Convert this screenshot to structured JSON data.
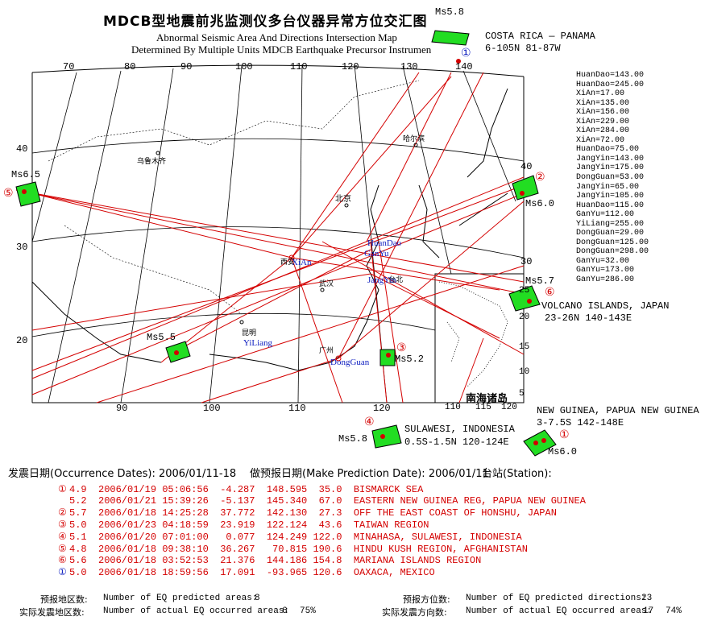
{
  "header": {
    "title_cn": "MDCB型地震前兆监测仪多台仪器异常方位交汇图",
    "subtitle_line1": "Abnormal Seismic Area And Directions Intersection Map",
    "subtitle_line2": "Determined By Multiple Units MDCB Earthquake Precursor Instrumen"
  },
  "map": {
    "top_lon_ticks": [
      "70",
      "80",
      "90",
      "100",
      "110",
      "120",
      "130",
      "140"
    ],
    "bottom_lon_ticks": [
      "90",
      "100",
      "110",
      "120"
    ],
    "left_lat_ticks": [
      "40",
      "30",
      "20"
    ],
    "right_lat_ticks": [
      "40",
      "30"
    ],
    "inset_lat_ticks": [
      "25",
      "20",
      "15",
      "10",
      "5"
    ],
    "inset_lon_ticks": [
      "110",
      "115",
      "120"
    ],
    "inset_label": "南海诸岛",
    "city_labels": {
      "urumqi": "乌鲁木齐",
      "harbin": "哈尔滨",
      "beijing": "北京",
      "xian_city": "西安",
      "wuhan": "武汉",
      "kunming": "昆明",
      "guangzhou": "广州",
      "taipei": "台北"
    },
    "station_labels": {
      "huandao": "HuanDao",
      "ganyu": "GanYu",
      "xian": "XiAn",
      "jangyin": "JangYin",
      "yiliang": "YiLiang",
      "dongguan": "DongGuan"
    }
  },
  "areas": [
    {
      "id": "costa-rica",
      "marker": "①",
      "marker_color": "#1020c0",
      "mag": "Ms5.8",
      "name": "COSTA RICA — PANAMA",
      "range": "6-105N 81-87W"
    },
    {
      "id": "japan",
      "marker": "②",
      "marker_color": "#d40000",
      "mag": "Ms6.0",
      "name": "",
      "range": ""
    },
    {
      "id": "west",
      "marker": "⑤",
      "marker_color": "#d40000",
      "mag": "Ms6.5",
      "name": "",
      "range": ""
    },
    {
      "id": "volcano",
      "marker": "⑥",
      "marker_color": "#d40000",
      "mag": "Ms5.7",
      "name": "VOLCANO ISLANDS, JAPAN",
      "range": "23-26N 140-143E"
    },
    {
      "id": "myanmar",
      "marker": "",
      "marker_color": "#d40000",
      "mag": "Ms5.5",
      "name": "",
      "range": ""
    },
    {
      "id": "taiwan",
      "marker": "③",
      "marker_color": "#d40000",
      "mag": "Ms5.2",
      "name": "",
      "range": ""
    },
    {
      "id": "sulawesi",
      "marker": "④",
      "marker_color": "#d40000",
      "mag": "Ms5.8",
      "name": "SULAWESI, INDONESIA",
      "range": "0.5S-1.5N  120-124E"
    },
    {
      "id": "png",
      "marker": "①",
      "marker_color": "#d40000",
      "mag": "Ms6.0",
      "name": "NEW GUINEA, PAPUA NEW GUINEA",
      "range": "3-7.5S 142-148E"
    }
  ],
  "azimuths": [
    "HuanDao=143.00",
    "HuanDao=245.00",
    "XiAn=17.00",
    "XiAn=135.00",
    "XiAn=156.00",
    "XiAn=229.00",
    "XiAn=284.00",
    "XiAn=72.00",
    "HuanDao=75.00",
    "JangYin=143.00",
    "JangYin=175.00",
    "DongGuan=53.00",
    "JangYin=65.00",
    "JangYin=105.00",
    "HuanDao=115.00",
    "GanYu=112.00",
    "YiLiang=255.00",
    "DongGuan=29.00",
    "DongGuan=125.00",
    "DongGuan=298.00",
    "GanYu=32.00",
    "GanYu=173.00",
    "GanYu=286.00"
  ],
  "info": {
    "occurrence_label": "发震日期(Occurrence Dates): 2006/01/11-18",
    "prediction_label": "做预报日期(Make Prediction Date): 2006/01/11",
    "station_label": "台站(Station):"
  },
  "events": [
    {
      "marker": "①",
      "marker_color": "#d40000",
      "text": "4.9  2006/01/19 05:06:56  -4.287  148.595  35.0  BISMARCK SEA"
    },
    {
      "marker": "",
      "marker_color": "#d40000",
      "text": "5.2  2006/01/21 15:39:26  -5.137  145.340  67.0  EASTERN NEW GUINEA REG, PAPUA NEW GUINEA"
    },
    {
      "marker": "②",
      "marker_color": "#d40000",
      "text": "5.7  2006/01/18 14:25:28  37.772  142.130  27.3  OFF THE EAST COAST OF HONSHU, JAPAN"
    },
    {
      "marker": "③",
      "marker_color": "#d40000",
      "text": "5.0  2006/01/23 04:18:59  23.919  122.124  43.6  TAIWAN REGION"
    },
    {
      "marker": "④",
      "marker_color": "#d40000",
      "text": "5.1  2006/01/20 07:01:00   0.077  124.249 122.0  MINAHASA, SULAWESI, INDONESIA"
    },
    {
      "marker": "⑤",
      "marker_color": "#d40000",
      "text": "4.8  2006/01/18 09:38:10  36.267   70.815 190.6  HINDU KUSH REGION, AFGHANISTAN"
    },
    {
      "marker": "⑥",
      "marker_color": "#d40000",
      "text": "5.6  2006/01/18 03:52:53  21.376  144.186 154.8  MARIANA ISLANDS REGION"
    },
    {
      "marker": "①",
      "marker_color": "#1020c0",
      "text": "5.0  2006/01/18 18:59:56  17.091  -93.965 120.6  OAXACA, MEXICO"
    }
  ],
  "footer": {
    "predicted_areas_cn": "预报地区数:",
    "predicted_areas_en": "Number of EQ predicted areas:",
    "predicted_areas_val": "8",
    "actual_areas_cn": "实际发震地区数:",
    "actual_areas_en": "Number of actual EQ occurred areas:",
    "actual_areas_val": "6",
    "actual_areas_pct": "75%",
    "predicted_dirs_cn": "预报方位数:",
    "predicted_dirs_en": "Number of EQ predicted directions:",
    "predicted_dirs_val": "23",
    "actual_dirs_cn": "实际发震方向数:",
    "actual_dirs_en": "Number of actual EQ occurred areas:",
    "actual_dirs_val": "17",
    "actual_dirs_pct": "74%"
  },
  "colors": {
    "area_fill": "#22dd22",
    "line_red": "#d40000",
    "marker_blue": "#1020c0"
  }
}
